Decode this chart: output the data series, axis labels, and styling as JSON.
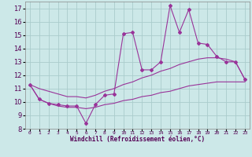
{
  "xlabel": "Windchill (Refroidissement éolien,°C)",
  "bg_color": "#cce8e8",
  "grid_color": "#aacccc",
  "line_color": "#993399",
  "x_hours": [
    0,
    1,
    2,
    3,
    4,
    5,
    6,
    7,
    8,
    9,
    10,
    11,
    12,
    13,
    14,
    15,
    16,
    17,
    18,
    19,
    20,
    21,
    22,
    23
  ],
  "windchill": [
    11.3,
    10.2,
    9.9,
    9.8,
    9.7,
    9.7,
    8.4,
    9.8,
    10.5,
    10.6,
    15.1,
    15.2,
    12.4,
    12.4,
    13.0,
    17.2,
    15.2,
    16.9,
    14.4,
    14.3,
    13.4,
    13.0,
    13.0,
    11.7
  ],
  "upper_band": [
    11.3,
    11.0,
    10.8,
    10.6,
    10.4,
    10.4,
    10.3,
    10.5,
    10.8,
    11.0,
    11.3,
    11.5,
    11.8,
    12.0,
    12.3,
    12.5,
    12.8,
    13.0,
    13.2,
    13.3,
    13.3,
    13.2,
    13.0,
    11.7
  ],
  "lower_band": [
    11.3,
    10.2,
    9.9,
    9.7,
    9.6,
    9.6,
    9.5,
    9.6,
    9.8,
    9.9,
    10.1,
    10.2,
    10.4,
    10.5,
    10.7,
    10.8,
    11.0,
    11.2,
    11.3,
    11.4,
    11.5,
    11.5,
    11.5,
    11.5
  ],
  "ylim": [
    8,
    17.5
  ],
  "yticks": [
    8,
    9,
    10,
    11,
    12,
    13,
    14,
    15,
    16,
    17
  ],
  "xtick_labels": [
    "0",
    "1",
    "2",
    "3",
    "4",
    "5",
    "6",
    "7",
    "8",
    "9",
    "10",
    "11",
    "12",
    "13",
    "14",
    "15",
    "16",
    "17",
    "18",
    "19",
    "20",
    "21",
    "22",
    "23"
  ]
}
